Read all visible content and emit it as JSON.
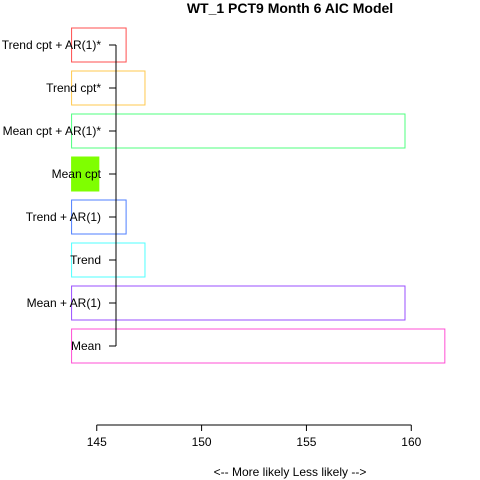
{
  "chart_data": {
    "type": "bar",
    "orientation": "horizontal",
    "title": "WT_1 PCT9 Month 6 AIC Model",
    "xlabel": "<--  More likely      Less likely  -->",
    "ylabel": "",
    "xlim": [
      143.2,
      162.8
    ],
    "baseline": 143.8,
    "xticks": [
      145,
      150,
      155,
      160
    ],
    "xtick_labels": [
      "145",
      "150",
      "155",
      "160"
    ],
    "categories": [
      "Mean",
      "Mean + AR(1)",
      "Trend",
      "Trend + AR(1)",
      "Mean cpt",
      "Mean cpt + AR(1)*",
      "Trend cpt*",
      "Trend cpt + AR(1)*"
    ],
    "values": [
      161.6,
      159.7,
      147.3,
      146.4,
      145.1,
      159.7,
      147.3,
      146.4
    ],
    "colors": [
      "#FF4FD4",
      "#9A4FFF",
      "#4FFFFF",
      "#4F7FFF",
      "#7FFF00",
      "#4FFF7F",
      "#FFC94F",
      "#FF4F4F"
    ],
    "filled": [
      false,
      false,
      false,
      false,
      true,
      false,
      false,
      false
    ],
    "grid": false,
    "legend": false
  }
}
